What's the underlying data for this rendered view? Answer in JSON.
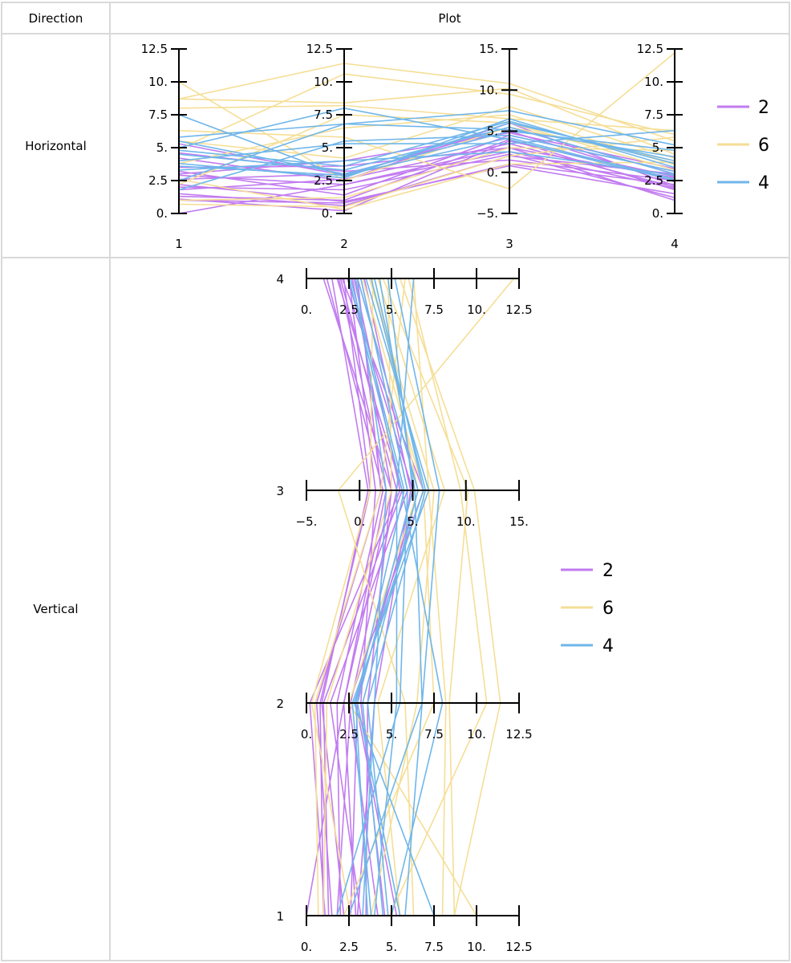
{
  "table": {
    "header": {
      "col1": "Direction",
      "col2": "Plot"
    },
    "rows": [
      {
        "label": "Horizontal"
      },
      {
        "label": "Vertical"
      }
    ]
  },
  "colors": {
    "2": "#c17bf0",
    "6": "#f5de96",
    "4": "#6fb6ea",
    "axis": "#000000",
    "border": "#d9d9d9"
  },
  "chart_data": [
    {
      "type": "parallel-coordinates",
      "orientation": "horizontal",
      "title": "",
      "axes": [
        {
          "name": "1",
          "range": [
            0,
            12.5
          ],
          "ticks": [
            "0.",
            "2.5",
            "5.",
            "7.5",
            "10.",
            "12.5"
          ],
          "tick_values": [
            0,
            2.5,
            5,
            7.5,
            10,
            12.5
          ]
        },
        {
          "name": "2",
          "range": [
            0,
            12.5
          ],
          "ticks": [
            "0.",
            "2.5",
            "5.",
            "7.5",
            "10.",
            "12.5"
          ],
          "tick_values": [
            0,
            2.5,
            5,
            7.5,
            10,
            12.5
          ]
        },
        {
          "name": "3",
          "range": [
            -5,
            15
          ],
          "ticks": [
            "−5.",
            "0.",
            "5.",
            "10.",
            "15."
          ],
          "tick_values": [
            -5,
            0,
            5,
            10,
            15
          ]
        },
        {
          "name": "4",
          "range": [
            0,
            12.5
          ],
          "ticks": [
            "0.",
            "2.5",
            "5.",
            "7.5",
            "10.",
            "12.5"
          ],
          "tick_values": [
            0,
            2.5,
            5,
            7.5,
            10,
            12.5
          ]
        }
      ],
      "legend": {
        "position": "right",
        "entries": [
          "2",
          "6",
          "4"
        ]
      },
      "series": [
        {
          "name": "2",
          "lines": [
            [
              0.0,
              2.2,
              3.0,
              1.0
            ],
            [
              1.0,
              0.8,
              1.0,
              2.2
            ],
            [
              1.3,
              1.0,
              4.0,
              1.8
            ],
            [
              1.5,
              0.6,
              2.0,
              3.0
            ],
            [
              1.8,
              2.6,
              3.5,
              2.0
            ],
            [
              2.2,
              0.9,
              0.8,
              1.5
            ],
            [
              2.6,
              3.0,
              5.0,
              2.4
            ],
            [
              2.9,
              2.2,
              2.5,
              1.9
            ],
            [
              3.2,
              1.4,
              4.5,
              3.2
            ],
            [
              3.5,
              3.6,
              3.0,
              2.7
            ],
            [
              4.2,
              2.5,
              6.0,
              2.1
            ],
            [
              4.6,
              3.2,
              1.5,
              2.5
            ],
            [
              5.3,
              2.9,
              5.5,
              3.0
            ],
            [
              1.1,
              0.2,
              3.8,
              2.8
            ],
            [
              2.0,
              1.8,
              2.2,
              1.2
            ],
            [
              3.0,
              4.0,
              4.8,
              3.4
            ]
          ]
        },
        {
          "name": "6",
          "lines": [
            [
              10.0,
              2.5,
              5.5,
              4.0
            ],
            [
              8.7,
              11.4,
              10.8,
              5.5
            ],
            [
              8.7,
              8.4,
              10.2,
              4.5
            ],
            [
              8.0,
              8.2,
              6.5,
              6.3
            ],
            [
              6.3,
              5.8,
              -2.0,
              12.2
            ],
            [
              4.9,
              10.6,
              9.5,
              6.0
            ],
            [
              3.8,
              6.5,
              7.0,
              3.7
            ],
            [
              2.2,
              7.5,
              6.0,
              3.3
            ],
            [
              1.0,
              1.2,
              3.0,
              4.8
            ],
            [
              0.7,
              0.5,
              2.0,
              5.8
            ],
            [
              5.5,
              4.2,
              8.0,
              4.2
            ],
            [
              2.6,
              0.3,
              1.0,
              3.9
            ]
          ]
        },
        {
          "name": "4",
          "lines": [
            [
              7.5,
              2.8,
              6.0,
              4.0
            ],
            [
              5.8,
              6.8,
              7.5,
              5.2
            ],
            [
              5.5,
              3.0,
              5.0,
              4.8
            ],
            [
              5.0,
              8.0,
              4.0,
              2.5
            ],
            [
              4.5,
              3.3,
              5.5,
              3.0
            ],
            [
              4.0,
              5.3,
              3.5,
              6.3
            ],
            [
              3.8,
              2.7,
              6.5,
              3.5
            ],
            [
              3.3,
              4.0,
              2.5,
              2.9
            ],
            [
              2.5,
              6.8,
              5.2,
              4.3
            ],
            [
              1.8,
              5.5,
              4.5,
              3.2
            ],
            [
              3.6,
              2.9,
              4.2,
              2.6
            ],
            [
              4.8,
              3.6,
              6.2,
              3.8
            ]
          ]
        }
      ]
    },
    {
      "type": "parallel-coordinates",
      "orientation": "vertical",
      "title": "",
      "axes_order_top_to_bottom": [
        "4",
        "3",
        "2",
        "1"
      ],
      "legend": {
        "position": "right",
        "entries": [
          "2",
          "6",
          "4"
        ]
      },
      "note": "Same data as horizontal plot, axes drawn horizontally and stacked"
    }
  ]
}
